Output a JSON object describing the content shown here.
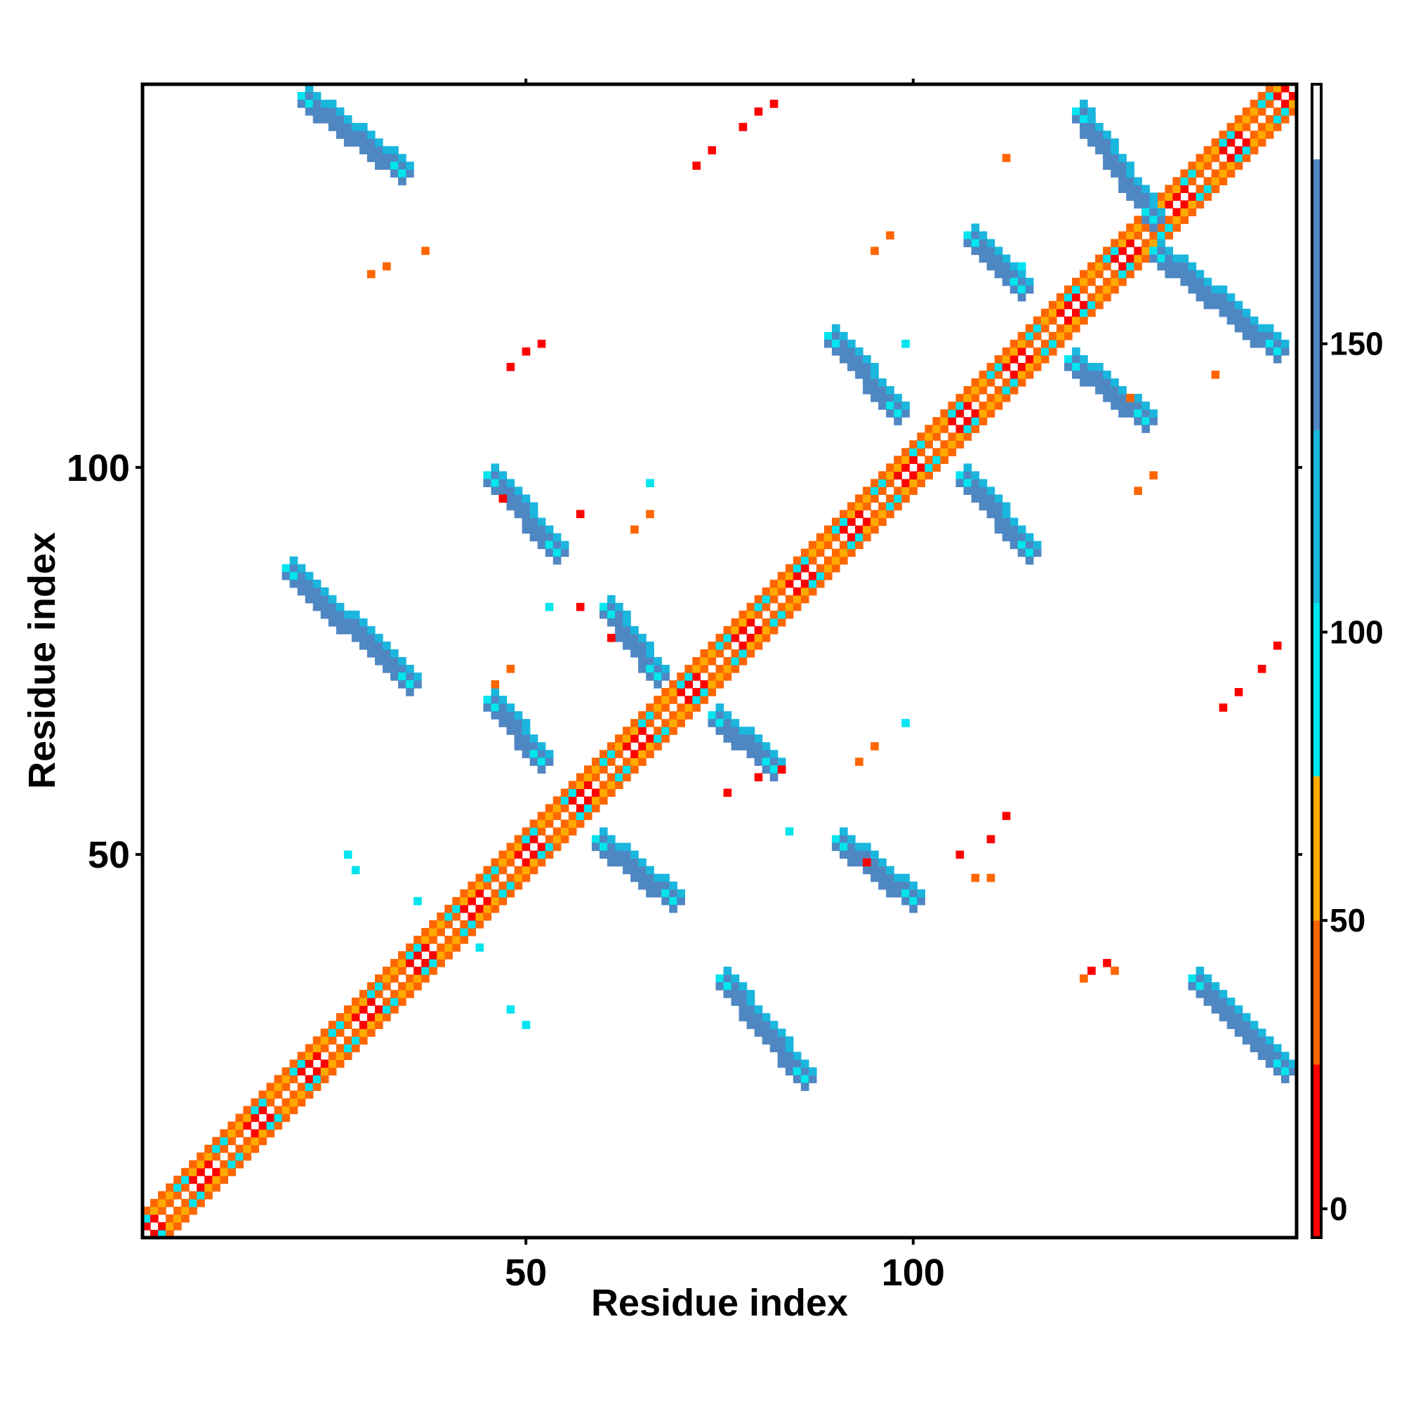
{
  "chart_data": {
    "type": "heatmap",
    "title": "",
    "xlabel": "Residue index",
    "ylabel": "Residue index",
    "xlim": [
      1,
      149
    ],
    "ylim": [
      1,
      149
    ],
    "x_ticks": [
      50,
      100
    ],
    "y_ticks": [
      50,
      100
    ],
    "colorbar": {
      "ticks": [
        0,
        50,
        100,
        150
      ],
      "range": [
        -5,
        195
      ],
      "bands": [
        {
          "from": -5,
          "to": 25,
          "color": "#ff0000"
        },
        {
          "from": 25,
          "to": 50,
          "color": "#ff6600"
        },
        {
          "from": 50,
          "to": 75,
          "color": "#ffaa00"
        },
        {
          "from": 75,
          "to": 105,
          "color": "#00e5ee"
        },
        {
          "from": 105,
          "to": 135,
          "color": "#1ab6de"
        },
        {
          "from": 135,
          "to": 182,
          "color": "#4f87c2"
        },
        {
          "from": 182,
          "to": 195,
          "color": "#ffffff"
        }
      ]
    },
    "grid": false,
    "series": [
      {
        "kind": "diagonal",
        "x_start": 1,
        "x_end": 149
      },
      {
        "kind": "strand",
        "values": 160,
        "segments": [
          [
            21,
            148,
            34,
            138
          ],
          [
            19,
            87,
            35,
            72
          ],
          [
            45,
            99,
            54,
            89
          ],
          [
            60,
            82,
            67,
            73
          ],
          [
            45,
            70,
            52,
            62
          ],
          [
            59,
            52,
            69,
            44
          ],
          [
            90,
            52,
            100,
            44
          ],
          [
            75,
            34,
            86,
            21
          ],
          [
            136,
            34,
            148,
            22
          ],
          [
            89,
            117,
            98,
            107
          ],
          [
            106,
            99,
            115,
            89
          ],
          [
            120,
            114,
            130,
            106
          ],
          [
            107,
            130,
            114,
            123
          ],
          [
            121,
            146,
            131,
            132
          ],
          [
            131,
            128,
            147,
            115
          ],
          [
            74,
            68,
            82,
            61
          ]
        ]
      },
      {
        "kind": "contact",
        "values": 10,
        "points": [
          [
            72,
            139
          ],
          [
            74,
            141
          ],
          [
            78,
            144
          ],
          [
            80,
            146
          ],
          [
            82,
            147
          ],
          [
            48,
            113
          ],
          [
            50,
            115
          ],
          [
            52,
            116
          ],
          [
            47,
            96
          ],
          [
            57,
            94
          ],
          [
            80,
            60
          ],
          [
            83,
            61
          ],
          [
            76,
            58
          ],
          [
            61,
            78
          ],
          [
            57,
            82
          ],
          [
            140,
            69
          ],
          [
            142,
            71
          ],
          [
            145,
            74
          ],
          [
            147,
            77
          ],
          [
            110,
            52
          ],
          [
            112,
            55
          ],
          [
            106,
            50
          ],
          [
            125,
            36
          ],
          [
            123,
            35
          ],
          [
            94,
            49
          ]
        ]
      },
      {
        "kind": "contact",
        "values": 40,
        "points": [
          [
            30,
            125
          ],
          [
            32,
            126
          ],
          [
            37,
            128
          ],
          [
            64,
            92
          ],
          [
            66,
            94
          ],
          [
            46,
            72
          ],
          [
            48,
            74
          ],
          [
            93,
            62
          ],
          [
            95,
            64
          ],
          [
            129,
            97
          ],
          [
            131,
            99
          ],
          [
            108,
            47
          ],
          [
            110,
            47
          ],
          [
            122,
            34
          ],
          [
            126,
            35
          ],
          [
            95,
            128
          ],
          [
            97,
            130
          ],
          [
            128,
            109
          ],
          [
            139,
            112
          ],
          [
            112,
            140
          ]
        ]
      },
      {
        "kind": "contact",
        "values": 90,
        "points": [
          [
            27,
            50
          ],
          [
            28,
            48
          ],
          [
            36,
            44
          ],
          [
            44,
            38
          ],
          [
            48,
            30
          ],
          [
            50,
            28
          ],
          [
            53,
            82
          ],
          [
            66,
            98
          ],
          [
            84,
            53
          ],
          [
            99,
            67
          ],
          [
            114,
            126
          ],
          [
            99,
            116
          ]
        ]
      }
    ]
  }
}
